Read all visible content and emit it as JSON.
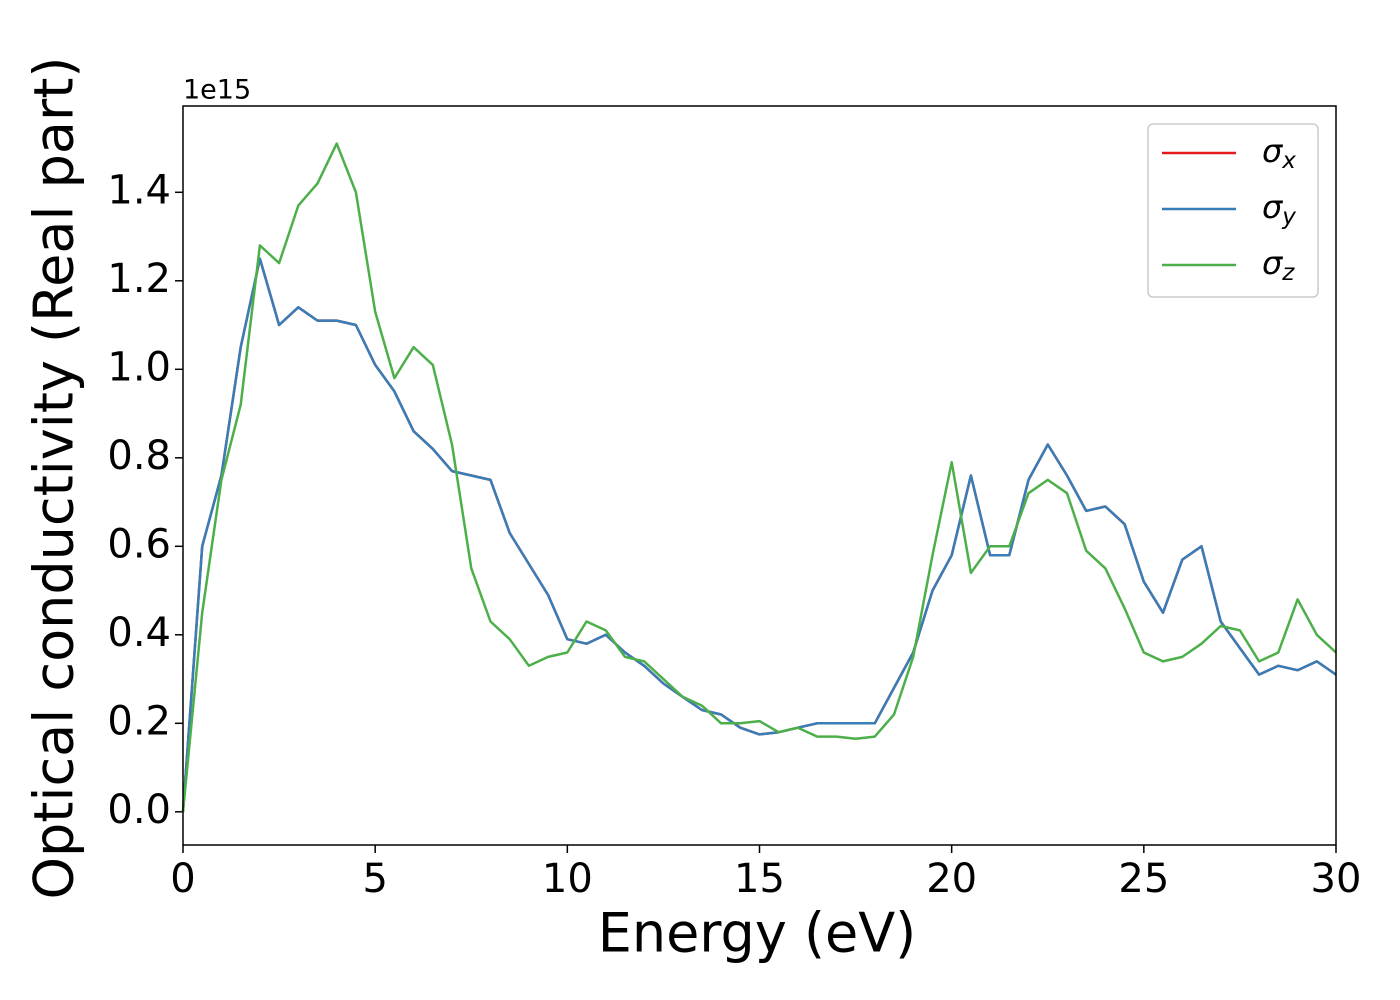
{
  "chart_data": {
    "type": "line",
    "xlabel": "Energy (eV)",
    "ylabel": "Optical conductivity (Real part)",
    "y_offset_label": "1e15",
    "x": [
      0,
      0.5,
      1,
      1.5,
      2,
      2.5,
      3,
      3.5,
      4,
      4.5,
      5,
      5.5,
      6,
      6.5,
      7,
      7.5,
      8,
      8.5,
      9,
      9.5,
      10,
      10.5,
      11,
      11.5,
      12,
      12.5,
      13,
      13.5,
      14,
      14.5,
      15,
      15.5,
      16,
      16.5,
      17,
      17.5,
      18,
      18.5,
      19,
      19.5,
      20,
      20.5,
      21,
      21.5,
      22,
      22.5,
      23,
      23.5,
      24,
      24.5,
      25,
      25.5,
      26,
      26.5,
      27,
      27.5,
      28,
      28.5,
      29,
      29.5,
      30
    ],
    "series": [
      {
        "name": "σx",
        "color": "#e41a1c",
        "values": [
          0,
          0.6,
          0.76,
          1.05,
          1.25,
          1.1,
          1.14,
          1.11,
          1.11,
          1.1,
          1.01,
          0.95,
          0.86,
          0.82,
          0.77,
          0.76,
          0.75,
          0.63,
          0.56,
          0.49,
          0.39,
          0.38,
          0.4,
          0.36,
          0.33,
          0.29,
          0.26,
          0.23,
          0.22,
          0.19,
          0.175,
          0.18,
          0.19,
          0.2,
          0.2,
          0.2,
          0.2,
          0.28,
          0.36,
          0.5,
          0.58,
          0.76,
          0.58,
          0.58,
          0.75,
          0.83,
          0.76,
          0.68,
          0.69,
          0.65,
          0.52,
          0.45,
          0.57,
          0.6,
          0.43,
          0.37,
          0.31,
          0.33,
          0.32,
          0.34,
          0.31
        ]
      },
      {
        "name": "σy",
        "color": "#377eb8",
        "values": [
          0,
          0.6,
          0.76,
          1.05,
          1.25,
          1.1,
          1.14,
          1.11,
          1.11,
          1.1,
          1.01,
          0.95,
          0.86,
          0.82,
          0.77,
          0.76,
          0.75,
          0.63,
          0.56,
          0.49,
          0.39,
          0.38,
          0.4,
          0.36,
          0.33,
          0.29,
          0.26,
          0.23,
          0.22,
          0.19,
          0.175,
          0.18,
          0.19,
          0.2,
          0.2,
          0.2,
          0.2,
          0.28,
          0.36,
          0.5,
          0.58,
          0.76,
          0.58,
          0.58,
          0.75,
          0.83,
          0.76,
          0.68,
          0.69,
          0.65,
          0.52,
          0.45,
          0.57,
          0.6,
          0.43,
          0.37,
          0.31,
          0.33,
          0.32,
          0.34,
          0.31
        ]
      },
      {
        "name": "σz",
        "color": "#4daf4a",
        "values": [
          0,
          0.45,
          0.75,
          0.92,
          1.28,
          1.24,
          1.37,
          1.42,
          1.51,
          1.4,
          1.13,
          0.98,
          1.05,
          1.01,
          0.83,
          0.55,
          0.43,
          0.39,
          0.33,
          0.35,
          0.36,
          0.43,
          0.41,
          0.35,
          0.34,
          0.3,
          0.26,
          0.24,
          0.2,
          0.2,
          0.205,
          0.18,
          0.19,
          0.17,
          0.17,
          0.165,
          0.17,
          0.22,
          0.35,
          0.58,
          0.79,
          0.54,
          0.6,
          0.6,
          0.72,
          0.75,
          0.72,
          0.59,
          0.55,
          0.46,
          0.36,
          0.34,
          0.35,
          0.38,
          0.42,
          0.41,
          0.34,
          0.36,
          0.48,
          0.4,
          0.36
        ]
      }
    ],
    "xlim": [
      0,
      30
    ],
    "xticks": [
      0,
      5,
      10,
      15,
      20,
      25,
      30
    ],
    "ylim": [
      -0.075,
      1.595
    ],
    "yticks": [
      {
        "value": 0,
        "label": "0.0"
      },
      0.2,
      0.4,
      0.6,
      0.8,
      {
        "value": 1,
        "label": "1.0"
      },
      1.2,
      1.4
    ],
    "legend": "upper right"
  }
}
